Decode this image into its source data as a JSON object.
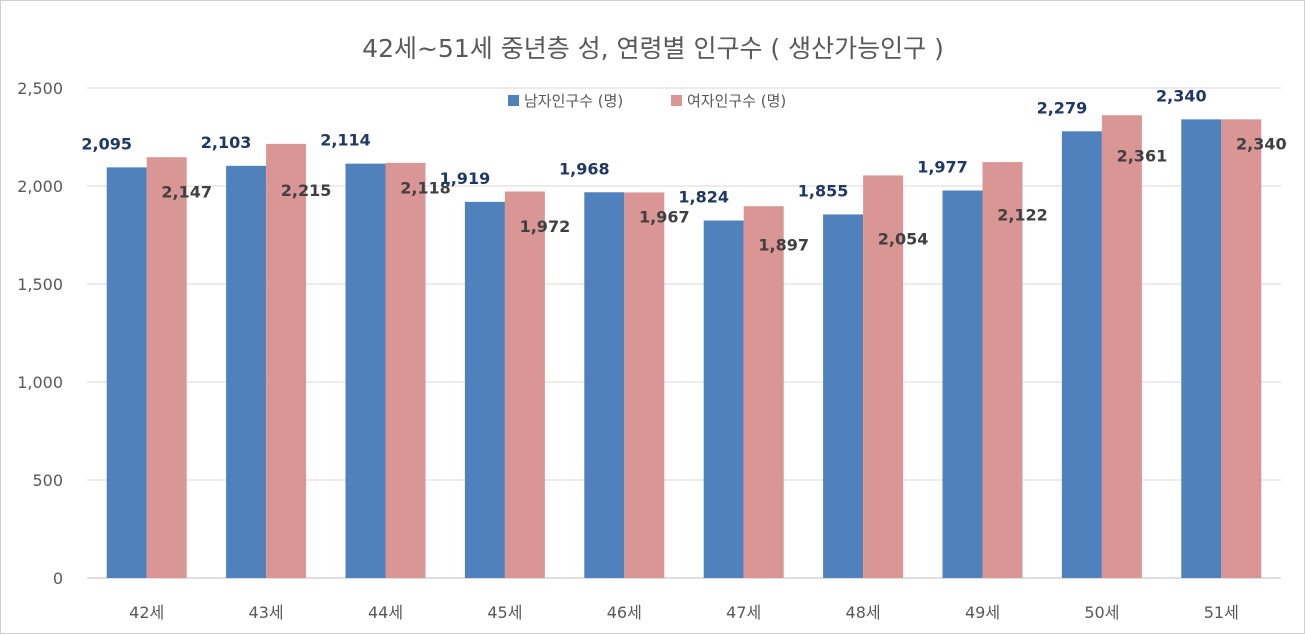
{
  "chart_data": {
    "type": "bar",
    "title": "42세~51세 중년층 성, 연령별 인구수 ( 생산가능인구 )",
    "xlabel": "",
    "ylabel": "",
    "categories": [
      "42세",
      "43세",
      "44세",
      "45세",
      "46세",
      "47세",
      "48세",
      "49세",
      "50세",
      "51세"
    ],
    "series": [
      {
        "name": "남자인구수 (명)",
        "color": "#4f81bd",
        "values": [
          2095,
          2103,
          2114,
          1919,
          1968,
          1824,
          1855,
          1977,
          2279,
          2340
        ],
        "labels": [
          "2,095",
          "2,103",
          "2,114",
          "1,919",
          "1,968",
          "1,824",
          "1,855",
          "1,977",
          "2,279",
          "2,340"
        ]
      },
      {
        "name": "여자인구수 (명)",
        "color": "#d99694",
        "values": [
          2147,
          2215,
          2118,
          1972,
          1967,
          1897,
          2054,
          2122,
          2361,
          2340
        ],
        "labels": [
          "2,147",
          "2,215",
          "2,118",
          "1,972",
          "1,967",
          "1,897",
          "2,054",
          "2,122",
          "2,361",
          "2,340"
        ]
      }
    ],
    "ylim": [
      0,
      2500
    ],
    "yticks": [
      0,
      500,
      1000,
      1500,
      2000,
      2500
    ],
    "ytick_labels": [
      "0",
      "500",
      "1,000",
      "1,500",
      "2,000",
      "2,500"
    ],
    "grid": true,
    "legend": "top-center"
  }
}
